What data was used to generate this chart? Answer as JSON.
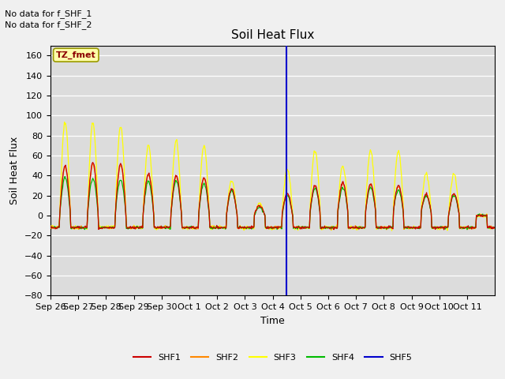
{
  "title": "Soil Heat Flux",
  "ylabel": "Soil Heat Flux",
  "xlabel": "Time",
  "ylim": [
    -80,
    170
  ],
  "background_color": "#dcdcdc",
  "fig_background": "#f0f0f0",
  "annotations": [
    "No data for f_SHF_1",
    "No data for f_SHF_2"
  ],
  "tz_label": "TZ_fmet",
  "vertical_line_x": 8.5,
  "tick_labels": [
    "Sep 26",
    "Sep 27",
    "Sep 28",
    "Sep 29",
    "Sep 30",
    "Oct 1",
    "Oct 2",
    "Oct 3",
    "Oct 4",
    "Oct 5",
    "Oct 6",
    "Oct 7",
    "Oct 8",
    "Oct 9",
    "Oct 10",
    "Oct 11"
  ],
  "legend_entries": [
    {
      "label": "SHF1",
      "color": "#cc0000"
    },
    {
      "label": "SHF2",
      "color": "#ff8800"
    },
    {
      "label": "SHF3",
      "color": "#ffff00"
    },
    {
      "label": "SHF4",
      "color": "#00bb00"
    },
    {
      "label": "SHF5",
      "color": "#0000cc"
    }
  ],
  "shf1_color": "#cc0000",
  "shf2_color": "#ff8800",
  "shf3_color": "#ffff00",
  "shf4_color": "#00bb00",
  "shf5_color": "#0000cc",
  "shf3_peaks": [
    93,
    93,
    89,
    70,
    75,
    70,
    35,
    12,
    47,
    65,
    50,
    65,
    65,
    42,
    42,
    0
  ],
  "shf1_peaks": [
    50,
    53,
    52,
    42,
    40,
    38,
    27,
    10,
    22,
    30,
    33,
    32,
    30,
    22,
    22,
    0
  ],
  "shf4_peaks": [
    38,
    37,
    36,
    35,
    35,
    32,
    25,
    8,
    20,
    27,
    28,
    28,
    26,
    20,
    20,
    0
  ],
  "night_val": -12,
  "n_days": 16
}
